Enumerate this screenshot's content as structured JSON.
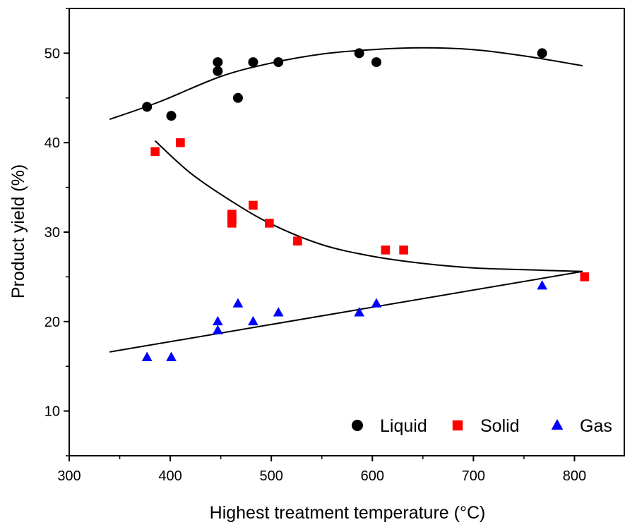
{
  "chart_data": {
    "type": "scatter",
    "title": "",
    "xlabel": "Highest treatment temperature (°C)",
    "ylabel": "Product yield (%)",
    "xlim": [
      300,
      850
    ],
    "ylim": [
      5,
      55
    ],
    "x_ticks": [
      300,
      400,
      500,
      600,
      700,
      800
    ],
    "y_ticks": [
      10,
      20,
      30,
      40,
      50
    ],
    "grid": false,
    "legend": {
      "position": "bottom-right",
      "entries": [
        {
          "name": "Liquid",
          "marker": "circle",
          "color": "#000000"
        },
        {
          "name": "Solid",
          "marker": "square",
          "color": "#ff0000"
        },
        {
          "name": "Gas",
          "marker": "triangle",
          "color": "#0000ff"
        }
      ]
    },
    "series": [
      {
        "name": "Liquid",
        "marker": "circle",
        "color": "#000000",
        "points": [
          [
            377,
            44
          ],
          [
            401,
            43
          ],
          [
            447,
            48
          ],
          [
            447,
            49
          ],
          [
            467,
            45
          ],
          [
            482,
            49
          ],
          [
            507,
            49
          ],
          [
            587,
            50
          ],
          [
            604,
            49
          ],
          [
            768,
            50
          ]
        ]
      },
      {
        "name": "Solid",
        "marker": "square",
        "color": "#ff0000",
        "points": [
          [
            385,
            39
          ],
          [
            410,
            40
          ],
          [
            461,
            31
          ],
          [
            461,
            31.6
          ],
          [
            461,
            32
          ],
          [
            482,
            33
          ],
          [
            498,
            31
          ],
          [
            526,
            29
          ],
          [
            613,
            28
          ],
          [
            631,
            28
          ],
          [
            810,
            25
          ]
        ]
      },
      {
        "name": "Gas",
        "marker": "triangle",
        "color": "#0000ff",
        "points": [
          [
            377,
            16
          ],
          [
            401,
            16
          ],
          [
            447,
            19
          ],
          [
            447,
            20
          ],
          [
            467,
            22
          ],
          [
            482,
            20
          ],
          [
            507,
            21
          ],
          [
            587,
            21
          ],
          [
            604,
            22
          ],
          [
            768,
            24
          ]
        ]
      }
    ],
    "fit_curves": [
      {
        "series": "Liquid",
        "color": "#000000",
        "points": [
          [
            340,
            42.6
          ],
          [
            390,
            44.6
          ],
          [
            450,
            47.4
          ],
          [
            500,
            48.9
          ],
          [
            550,
            49.9
          ],
          [
            600,
            50.4
          ],
          [
            650,
            50.6
          ],
          [
            700,
            50.4
          ],
          [
            750,
            49.7
          ],
          [
            808,
            48.6
          ]
        ]
      },
      {
        "series": "Solid",
        "color": "#ff0000",
        "points": [
          [
            385,
            40.2
          ],
          [
            420,
            36.6
          ],
          [
            460,
            33.5
          ],
          [
            500,
            30.9
          ],
          [
            550,
            28.6
          ],
          [
            600,
            27.3
          ],
          [
            650,
            26.5
          ],
          [
            700,
            26.0
          ],
          [
            750,
            25.8
          ],
          [
            808,
            25.6
          ]
        ]
      },
      {
        "series": "Gas",
        "color": "#0000ff",
        "points": [
          [
            340,
            16.6
          ],
          [
            808,
            25.6
          ]
        ]
      }
    ]
  }
}
